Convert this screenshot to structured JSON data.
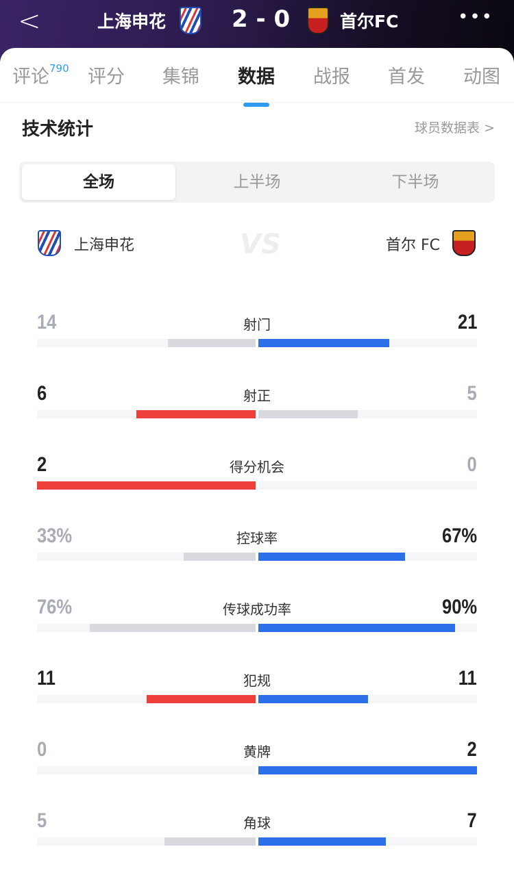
{
  "header": {
    "home": "上海申花",
    "score": "2 - 0",
    "away": "首尔FC"
  },
  "tabs": [
    {
      "label": "评论",
      "badge": "790"
    },
    {
      "label": "评分"
    },
    {
      "label": "集锦"
    },
    {
      "label": "数据",
      "active": true
    },
    {
      "label": "战报"
    },
    {
      "label": "首发"
    },
    {
      "label": "动图"
    }
  ],
  "section": {
    "title": "技术统计",
    "link": "球员数据表 >"
  },
  "periods": [
    "全场",
    "上半场",
    "下半场"
  ],
  "teams": {
    "home": "上海申花",
    "away": "首尔 FC",
    "vs": "VS"
  },
  "colors": {
    "home": "#ee3f3a",
    "away": "#2d6fe8",
    "muted": "#d9dadf",
    "accent": "#2f9bf0"
  },
  "stats": [
    {
      "label": "射门",
      "home": "14",
      "away": "21"
    },
    {
      "label": "射正",
      "home": "6",
      "away": "5"
    },
    {
      "label": "得分机会",
      "home": "2",
      "away": "0"
    },
    {
      "label": "控球率",
      "home": "33%",
      "away": "67%"
    },
    {
      "label": "传球成功率",
      "home": "76%",
      "away": "90%"
    },
    {
      "label": "犯规",
      "home": "11",
      "away": "11"
    },
    {
      "label": "黄牌",
      "home": "0",
      "away": "2"
    },
    {
      "label": "角球",
      "home": "5",
      "away": "7"
    }
  ]
}
